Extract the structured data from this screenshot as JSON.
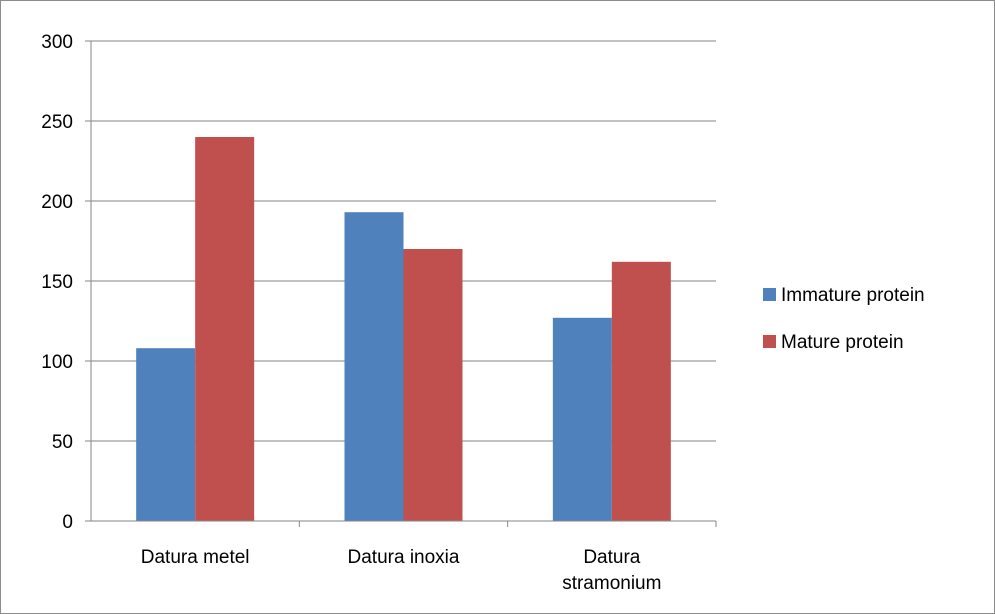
{
  "chart_data": {
    "type": "bar",
    "categories": [
      [
        "Datura metel"
      ],
      [
        "Datura inoxia"
      ],
      [
        "Datura",
        "stramonium"
      ]
    ],
    "series": [
      {
        "name": "Immature  protein",
        "values": [
          108,
          193,
          127
        ],
        "color": "#4f81bd"
      },
      {
        "name": "Mature protein",
        "values": [
          240,
          170,
          162
        ],
        "color": "#c0504d"
      }
    ],
    "ylim": [
      0,
      300
    ],
    "yticks": [
      "0",
      "50",
      "100",
      "150",
      "200",
      "250",
      "300"
    ],
    "grid": true,
    "legend_position": "right"
  }
}
